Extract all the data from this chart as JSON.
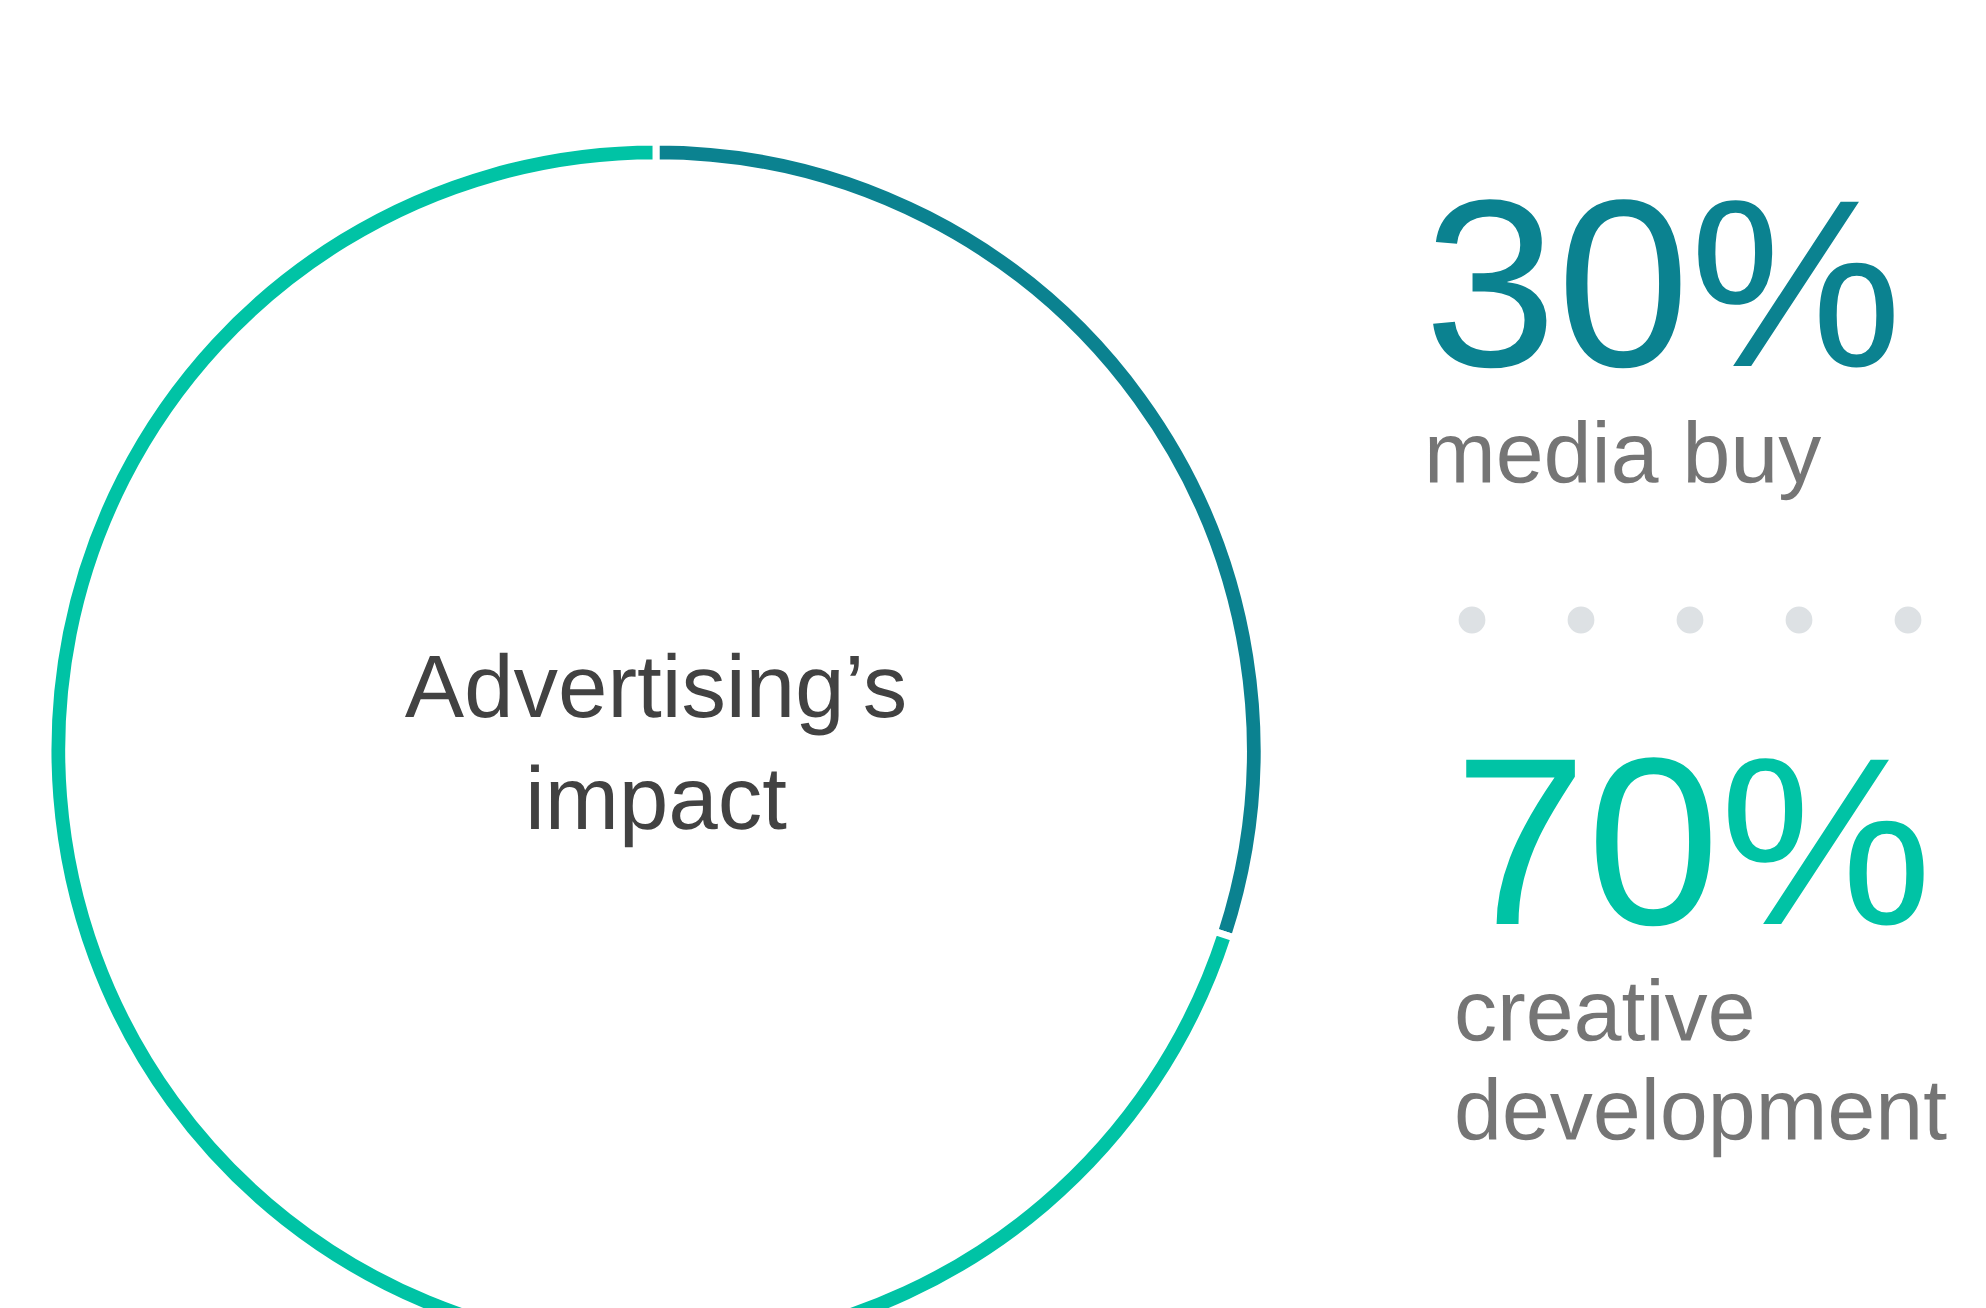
{
  "chart_data": {
    "type": "donut",
    "title": "Advertising’s\nimpact",
    "categories": [
      "media buy",
      "creative development"
    ],
    "values": [
      30,
      70
    ],
    "colors": [
      "#0b8290",
      "#00c3a5"
    ],
    "value_labels": [
      "30%",
      "70%"
    ],
    "legend": false
  }
}
